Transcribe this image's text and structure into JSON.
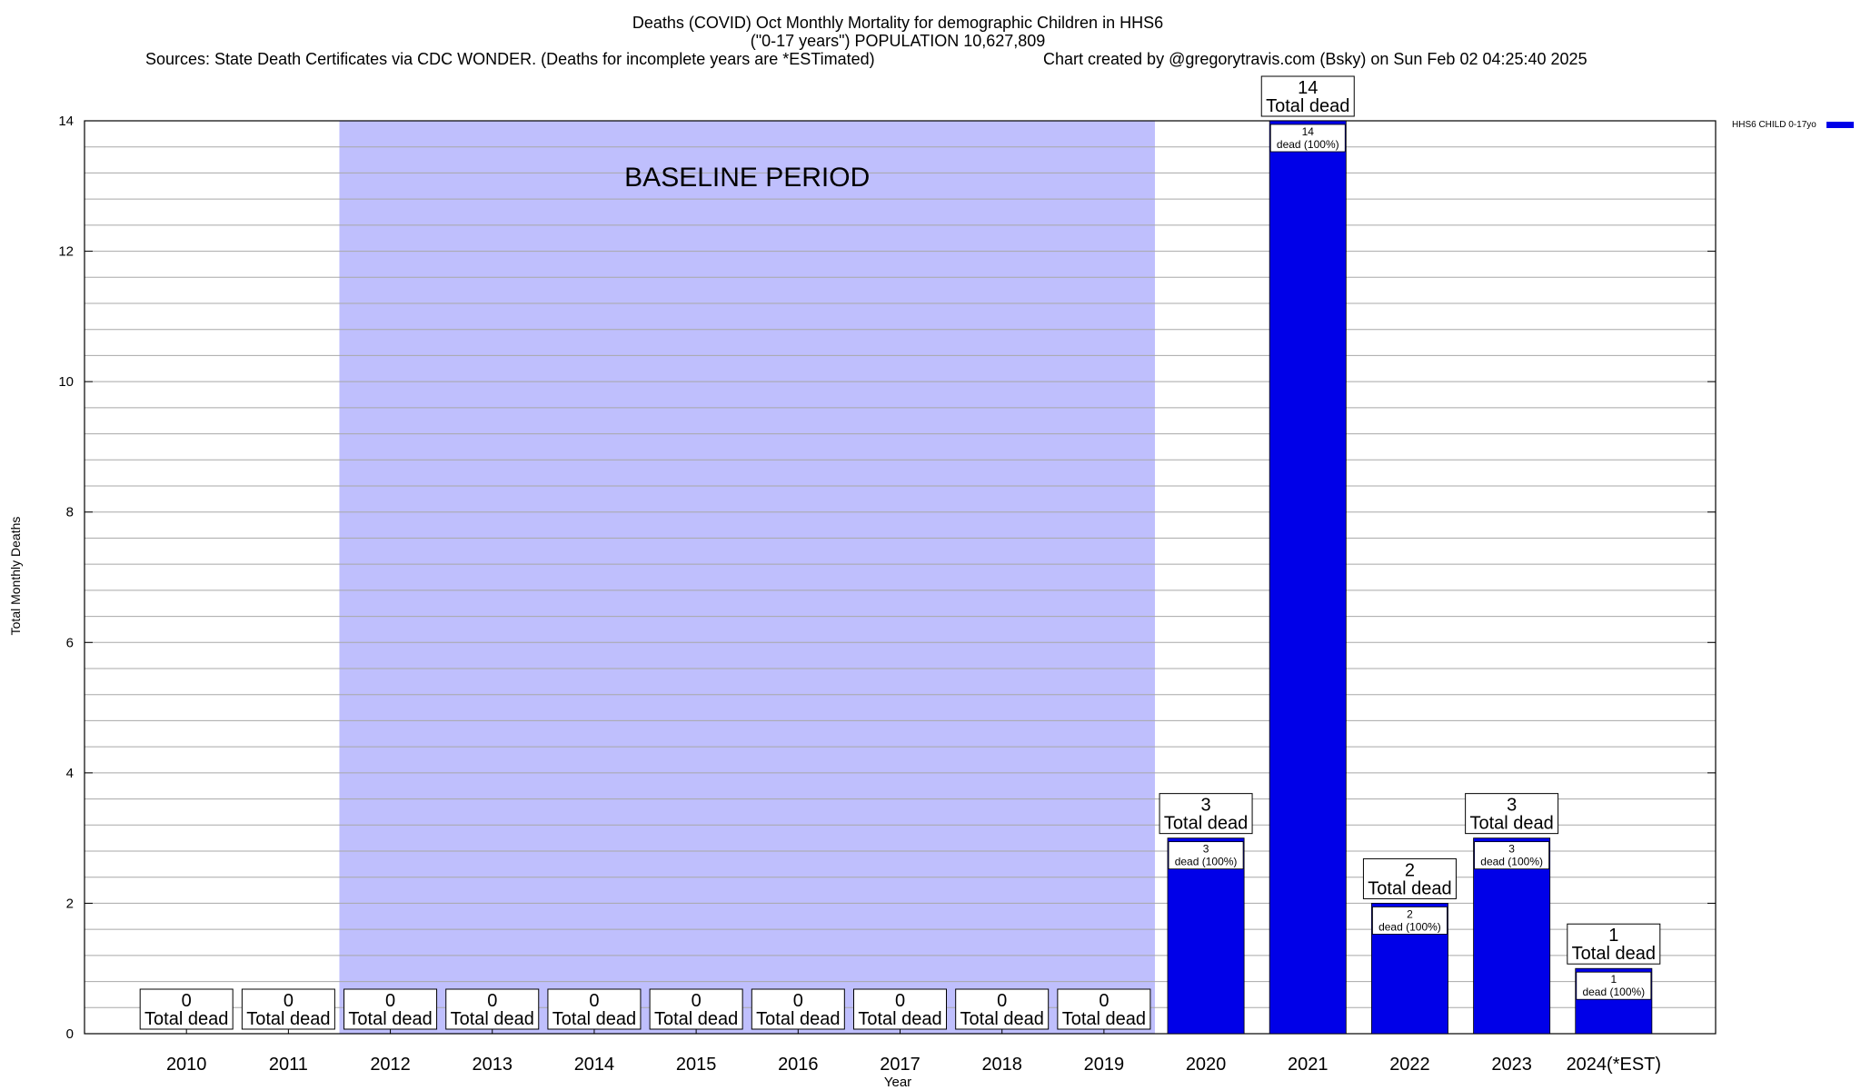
{
  "chart_data": {
    "type": "bar",
    "title": "Deaths (COVID) Oct Monthly Mortality for demographic Children in HHS6",
    "subtitle": "(\"0-17 years\") POPULATION 10,627,809",
    "sources": "Sources: State Death Certificates via CDC WONDER. (Deaths for incomplete years are *ESTimated)",
    "credit": "Chart created by @gregorytravis.com (Bsky) on Sun Feb 02 04:25:40 2025",
    "xlabel": "Year",
    "ylabel": "Total Monthly Deaths",
    "ylim": [
      0,
      14
    ],
    "yticks": [
      0,
      2,
      4,
      6,
      8,
      10,
      12,
      14
    ],
    "grid": true,
    "legend_position": "top-right",
    "categories": [
      "2010",
      "2011",
      "2012",
      "2013",
      "2014",
      "2015",
      "2016",
      "2017",
      "2018",
      "2019",
      "2020",
      "2021",
      "2022",
      "2023",
      "2024(*EST)"
    ],
    "series": [
      {
        "name": "HHS6 CHILD 0-17yo",
        "color": "#0000e8",
        "values": [
          0,
          0,
          0,
          0,
          0,
          0,
          0,
          0,
          0,
          0,
          3,
          14,
          2,
          3,
          1
        ],
        "inner_labels": [
          "",
          "",
          "",
          "",
          "",
          "",
          "",
          "",
          "",
          "",
          "3\ndead (100%)",
          "14\ndead (100%)",
          "2\ndead (100%)",
          "3\ndead (100%)",
          "1\ndead (100%)"
        ]
      }
    ],
    "total_labels": [
      "0\nTotal dead",
      "0\nTotal dead",
      "0\nTotal dead",
      "0\nTotal dead",
      "0\nTotal dead",
      "0\nTotal dead",
      "0\nTotal dead",
      "0\nTotal dead",
      "0\nTotal dead",
      "0\nTotal dead",
      "3\nTotal dead",
      "14\nTotal dead",
      "2\nTotal dead",
      "3\nTotal dead",
      "1\nTotal dead"
    ],
    "baseline": {
      "label": "BASELINE PERIOD",
      "from": "2012",
      "to": "2019",
      "color": "#bfbffd"
    }
  }
}
